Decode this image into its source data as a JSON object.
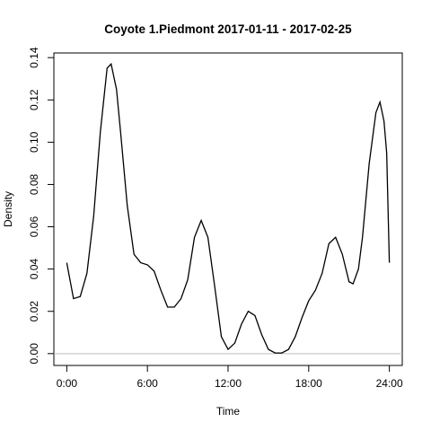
{
  "chart_data": {
    "type": "line",
    "title": "Coyote 1.Piedmont 2017-01-11 - 2017-02-25",
    "x_label": "Time",
    "y_label": "Density",
    "x": [
      0,
      0.5,
      1,
      1.5,
      2,
      2.5,
      3,
      3.3,
      3.7,
      4,
      4.5,
      5,
      5.5,
      6,
      6.5,
      7,
      7.5,
      8,
      8.5,
      9,
      9.5,
      10,
      10.5,
      11,
      11.5,
      12,
      12.5,
      13,
      13.5,
      14,
      14.5,
      15,
      15.5,
      16,
      16.5,
      17,
      17.5,
      18,
      18.5,
      19,
      19.5,
      20,
      20.5,
      21,
      21.3,
      21.7,
      22,
      22.5,
      23,
      23.3,
      23.6,
      23.8,
      24
    ],
    "series": [
      {
        "color": "#000000",
        "values": [
          0.043,
          0.026,
          0.027,
          0.038,
          0.065,
          0.105,
          0.135,
          0.137,
          0.125,
          0.105,
          0.07,
          0.047,
          0.043,
          0.042,
          0.039,
          0.03,
          0.022,
          0.022,
          0.026,
          0.035,
          0.055,
          0.063,
          0.055,
          0.032,
          0.008,
          0.002,
          0.005,
          0.014,
          0.02,
          0.018,
          0.009,
          0.002,
          0.0003,
          0.0003,
          0.002,
          0.008,
          0.017,
          0.025,
          0.03,
          0.038,
          0.052,
          0.055,
          0.047,
          0.034,
          0.033,
          0.04,
          0.055,
          0.09,
          0.114,
          0.119,
          0.11,
          0.095,
          0.043
        ]
      }
    ],
    "xlim": [
      -0.96,
      24.96
    ],
    "xticks": [
      {
        "value": 0,
        "label": "0:00"
      },
      {
        "value": 6,
        "label": "6:00"
      },
      {
        "value": 12,
        "label": "12:00"
      },
      {
        "value": 18,
        "label": "18:00"
      },
      {
        "value": 24,
        "label": "24:00"
      }
    ],
    "ylim": [
      -0.0056,
      0.1422
    ],
    "yticks": [
      {
        "value": 0,
        "label": "0.00"
      },
      0.02,
      0.04,
      0.06,
      0.08,
      {
        "value": 0.1,
        "label": "0.10"
      },
      0.12,
      0.14
    ],
    "baseline": 0,
    "baseline_color": "#bebebe"
  }
}
